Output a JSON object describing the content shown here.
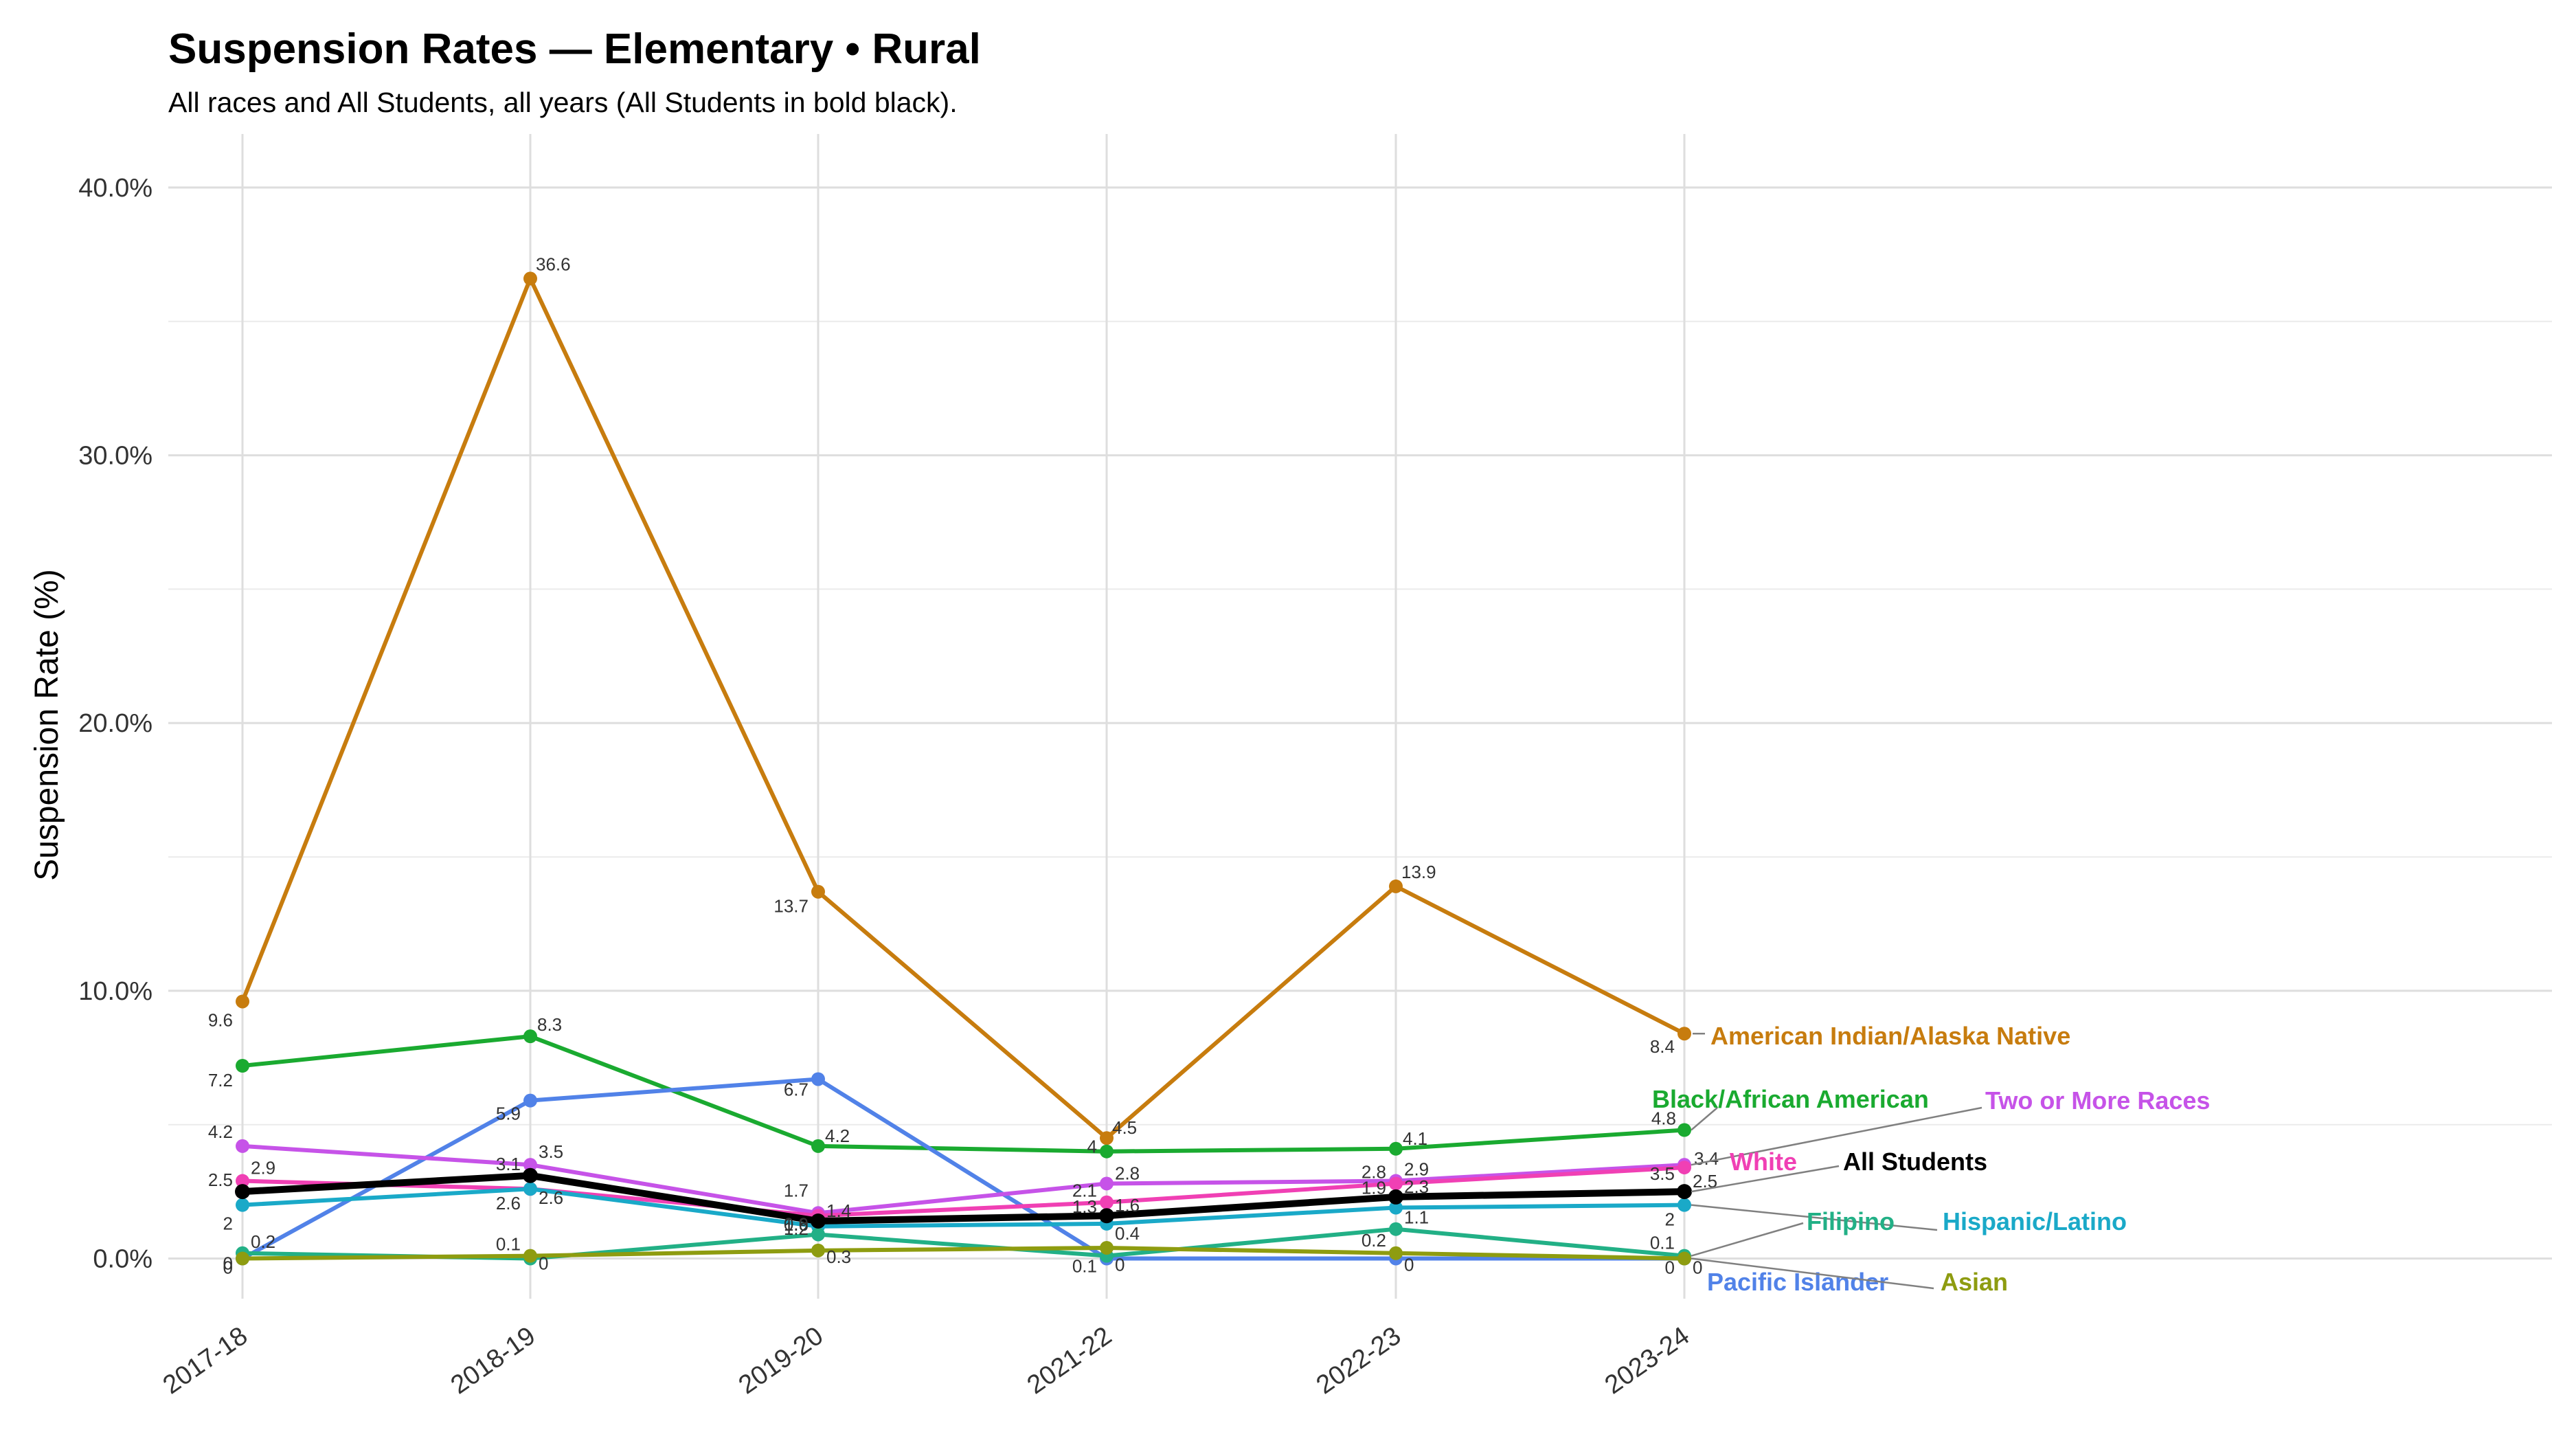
{
  "chart_data": {
    "type": "line",
    "title": "Suspension Rates — Elementary • Rural",
    "subtitle": "All races and All Students, all years (All Students in bold black).",
    "xlabel": "",
    "ylabel": "Suspension Rate (%)",
    "categories": [
      "2017-18",
      "2018-19",
      "2019-20",
      "2021-22",
      "2022-23",
      "2023-24"
    ],
    "ylim": [
      -1.5,
      42
    ],
    "y_ticks": [
      0,
      10,
      20,
      30,
      40
    ],
    "y_tick_labels": [
      "0.0%",
      "10.0%",
      "20.0%",
      "30.0%",
      "40.0%"
    ],
    "grid": true,
    "legend": "direct labels at right end of lines",
    "series": [
      {
        "name": "American Indian/Alaska Native",
        "color": "#C77C0E",
        "values": [
          9.6,
          36.6,
          13.7,
          4.5,
          13.9,
          8.4
        ],
        "labels": [
          "9.6",
          "36.6",
          "13.7",
          "4.5",
          "13.9",
          "8.4"
        ]
      },
      {
        "name": "Black/African American",
        "color": "#1AAA30",
        "values": [
          7.2,
          8.3,
          4.2,
          4.0,
          4.1,
          4.8
        ],
        "labels": [
          "7.2",
          "8.3",
          "4.2",
          "4",
          "4.1",
          "4.8"
        ]
      },
      {
        "name": "Pacific Islander",
        "color": "#5182E8",
        "values": [
          0,
          5.9,
          6.7,
          0,
          0,
          0
        ],
        "labels": [
          "0",
          "5.9",
          "6.7",
          "0",
          "0",
          "0"
        ]
      },
      {
        "name": "Two or More Races",
        "color": "#C653E8",
        "values": [
          4.2,
          3.5,
          1.7,
          2.8,
          2.9,
          3.5
        ],
        "labels": [
          "4.2",
          "3.5",
          "1.7",
          "2.8",
          "2.9",
          "3.5"
        ]
      },
      {
        "name": "White",
        "color": "#F040B4",
        "values": [
          2.9,
          2.6,
          1.6,
          2.1,
          2.8,
          3.4
        ],
        "labels": [
          "2.9",
          "2.6",
          "1.6",
          "2.1",
          "2.8",
          "3.4"
        ]
      },
      {
        "name": "Hispanic/Latino",
        "color": "#1AA9C8",
        "values": [
          2.0,
          2.6,
          1.2,
          1.3,
          1.9,
          2.0
        ],
        "labels": [
          "2",
          "2.6",
          "1.2",
          "1.3",
          "1.9",
          "2"
        ]
      },
      {
        "name": "Filipino",
        "color": "#22B086",
        "values": [
          0.2,
          0,
          0.9,
          0.1,
          1.1,
          0.1
        ],
        "labels": [
          "0.2",
          "0",
          "0.9",
          "0.1",
          "1.1",
          "0.1"
        ]
      },
      {
        "name": "Asian",
        "color": "#8E9C10",
        "values": [
          0,
          0.1,
          0.3,
          0.4,
          0.2,
          0
        ],
        "labels": [
          "0",
          "0.1",
          "0.3",
          "0.4",
          "0.2",
          "0"
        ]
      },
      {
        "name": "All Students",
        "color": "#000000",
        "bold": true,
        "values": [
          2.5,
          3.1,
          1.4,
          1.6,
          2.3,
          2.5
        ],
        "labels": [
          "2.5",
          "3.1",
          "1.4",
          "1.6",
          "2.3",
          "2.5"
        ]
      }
    ]
  }
}
